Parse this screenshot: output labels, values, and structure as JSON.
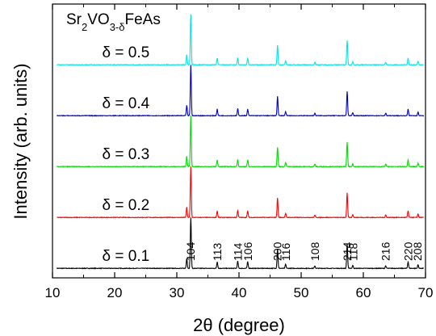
{
  "chart_data": {
    "type": "line",
    "title": "Sr2VO3-δFeAs",
    "title_parts": {
      "base": "Sr",
      "sub1": "2",
      "mid": "VO",
      "sub2": "3-δ",
      "tail": "FeAs"
    },
    "xlabel": "2θ (degree)",
    "ylabel": "Intensity (arb. units)",
    "xlim": [
      10,
      70
    ],
    "x_ticks": [
      10,
      20,
      30,
      40,
      50,
      60,
      70
    ],
    "x_tick_labels": [
      "10",
      "20",
      "30",
      "40",
      "50",
      "60",
      "70"
    ],
    "y_ticks_visible": false,
    "grid": false,
    "series": [
      {
        "name": "δ = 0.1",
        "color": "#000000",
        "offset": 0.0
      },
      {
        "name": "δ = 0.2",
        "color": "#ff0000",
        "offset": 1.0
      },
      {
        "name": "δ = 0.3",
        "color": "#00dd00",
        "offset": 2.0
      },
      {
        "name": "δ = 0.4",
        "color": "#0000cc",
        "offset": 3.0
      },
      {
        "name": "δ = 0.5",
        "color": "#00e5e5",
        "offset": 4.0
      }
    ],
    "peaks": [
      {
        "x": 31.6,
        "h": 0.2
      },
      {
        "x": 32.25,
        "h": 1.0
      },
      {
        "x": 36.5,
        "h": 0.13
      },
      {
        "x": 39.8,
        "h": 0.14
      },
      {
        "x": 41.4,
        "h": 0.13
      },
      {
        "x": 46.2,
        "h": 0.38
      },
      {
        "x": 47.5,
        "h": 0.08
      },
      {
        "x": 52.2,
        "h": 0.05
      },
      {
        "x": 57.4,
        "h": 0.48
      },
      {
        "x": 58.3,
        "h": 0.06
      },
      {
        "x": 63.6,
        "h": 0.05
      },
      {
        "x": 67.2,
        "h": 0.13
      },
      {
        "x": 68.8,
        "h": 0.07
      }
    ],
    "annotations": [
      {
        "text": "104",
        "x": 32.2
      },
      {
        "text": "113",
        "x": 36.5
      },
      {
        "text": "114",
        "x": 39.8
      },
      {
        "text": "106",
        "x": 41.4
      },
      {
        "text": "200",
        "x": 46.2
      },
      {
        "text": "116",
        "x": 47.5
      },
      {
        "text": "108",
        "x": 52.2
      },
      {
        "text": "214",
        "x": 57.4
      },
      {
        "text": "118",
        "x": 58.4
      },
      {
        "text": "216",
        "x": 63.6
      },
      {
        "text": "220",
        "x": 67.2
      },
      {
        "text": "208",
        "x": 68.7
      }
    ]
  }
}
